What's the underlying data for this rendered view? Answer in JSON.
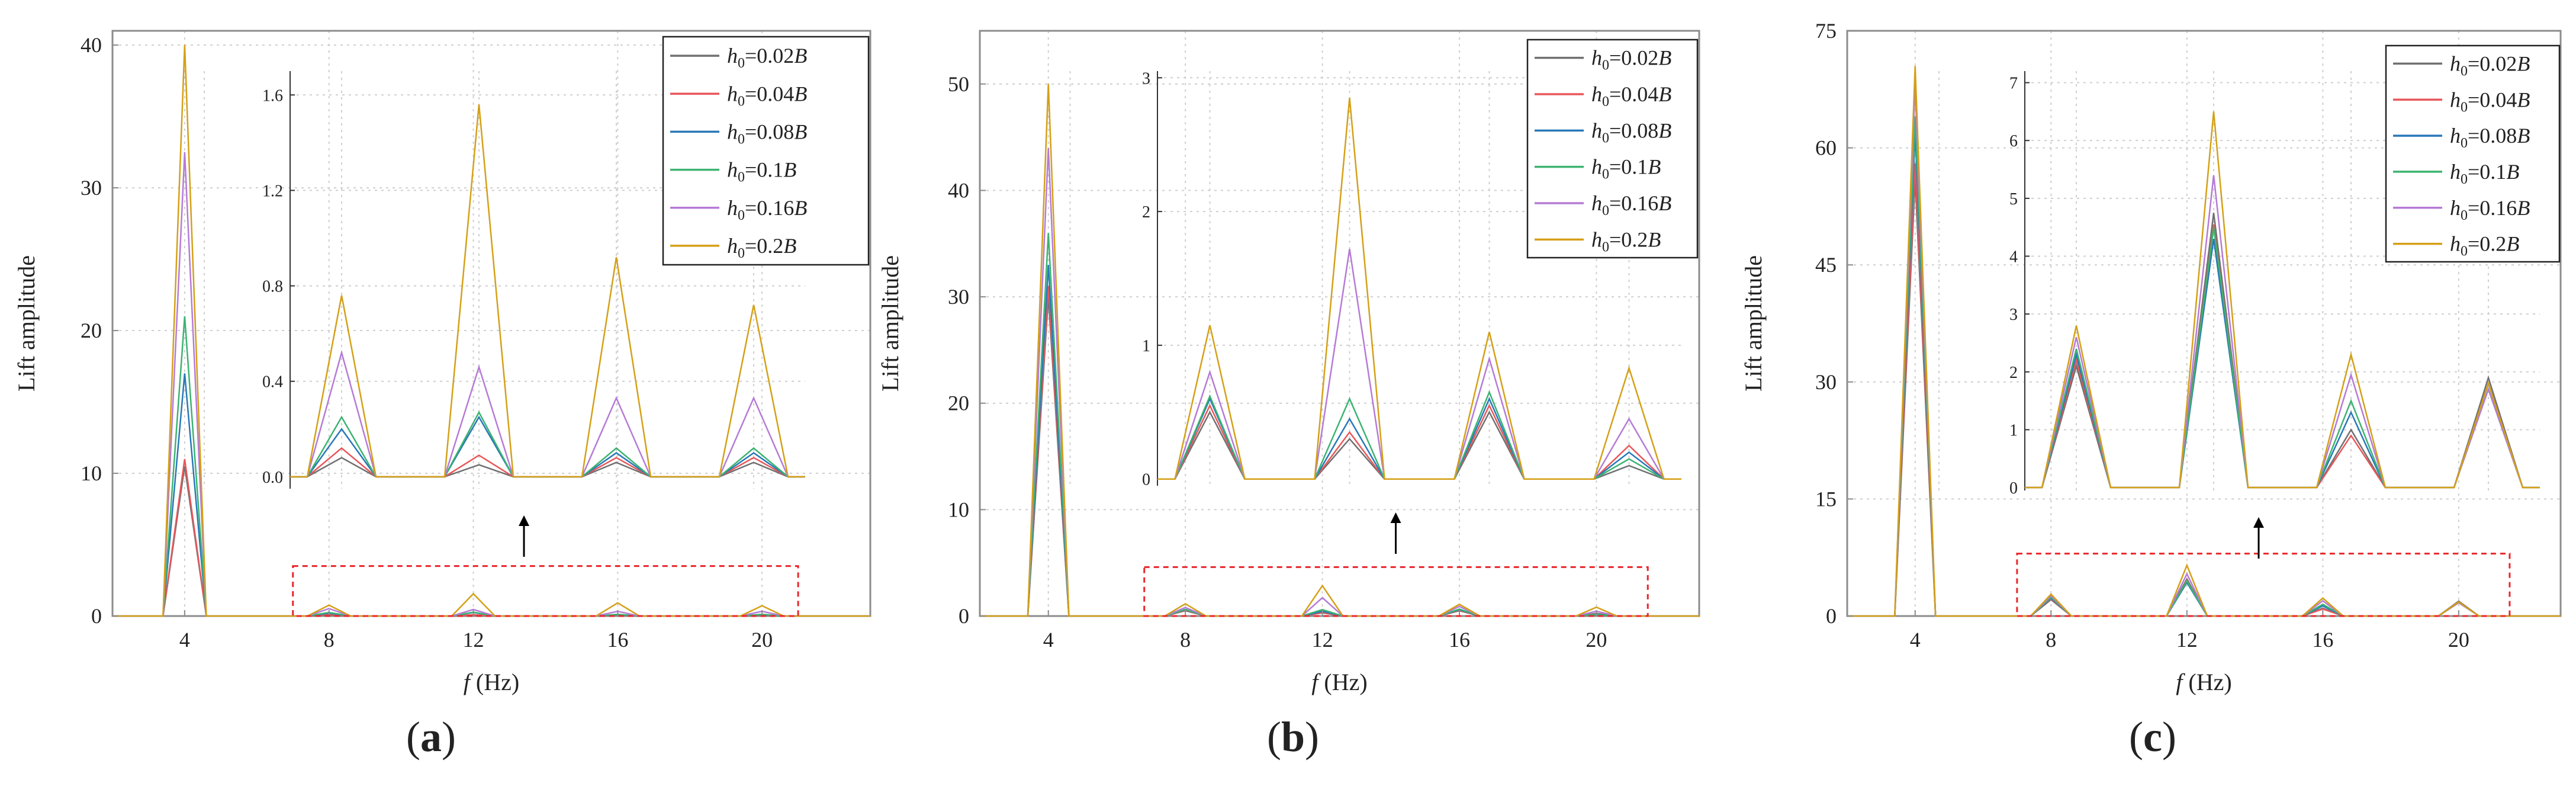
{
  "figure": {
    "panels": [
      {
        "label_open": "(",
        "label_letter": "a",
        "label_close": ")"
      },
      {
        "label_open": "(",
        "label_letter": "b",
        "label_close": ")"
      },
      {
        "label_open": "(",
        "label_letter": "c",
        "label_close": ")"
      }
    ]
  },
  "colors": {
    "series": [
      "#707070",
      "#e8575a",
      "#2878b8",
      "#3cb371",
      "#b57bd6",
      "#d4a017"
    ],
    "frame": "#8c8c8c",
    "grid": "#cfcfcf",
    "dashed_box": "#e8262b",
    "arrow": "#000000"
  },
  "chart_data": [
    {
      "type": "line",
      "ylabel": "Lift amplitude",
      "xlabel_symbol": "f",
      "xlabel_unit": "(Hz)",
      "xlim": [
        2,
        23
      ],
      "ylim": [
        0,
        41
      ],
      "xticks": [
        4,
        8,
        12,
        16,
        20
      ],
      "yticks": [
        0,
        10,
        20,
        30,
        40
      ],
      "x": [
        4,
        8,
        12,
        16,
        20
      ],
      "legend_position": "top-right",
      "series": [
        {
          "name_h": "h",
          "name_sub": "0",
          "name_value": "=0.02",
          "name_B": "B",
          "values": [
            10.5,
            0.08,
            0.05,
            0.06,
            0.06
          ]
        },
        {
          "name_h": "h",
          "name_sub": "0",
          "name_value": "=0.04",
          "name_B": "B",
          "values": [
            11.0,
            0.12,
            0.09,
            0.08,
            0.08
          ]
        },
        {
          "name_h": "h",
          "name_sub": "0",
          "name_value": "=0.08",
          "name_B": "B",
          "values": [
            17.0,
            0.2,
            0.25,
            0.1,
            0.1
          ]
        },
        {
          "name_h": "h",
          "name_sub": "0",
          "name_value": "=0.1",
          "name_B": "B",
          "values": [
            21.0,
            0.25,
            0.27,
            0.12,
            0.12
          ]
        },
        {
          "name_h": "h",
          "name_sub": "0",
          "name_value": "=0.16",
          "name_B": "B",
          "values": [
            32.5,
            0.52,
            0.46,
            0.33,
            0.33
          ]
        },
        {
          "name_h": "h",
          "name_sub": "0",
          "name_value": "=0.2",
          "name_B": "B",
          "values": [
            40.0,
            0.76,
            1.56,
            0.92,
            0.72
          ]
        }
      ],
      "inset": {
        "xlim": [
          6.5,
          21.5
        ],
        "ylim": [
          -0.05,
          1.7
        ],
        "yticks": [
          0.0,
          0.4,
          0.8,
          1.2,
          1.6
        ],
        "ytick_labels": [
          "0.0",
          "0.4",
          "0.8",
          "1.2",
          "1.6"
        ],
        "ygrid": [
          0.4,
          0.8,
          1.2,
          1.6
        ]
      },
      "zoom_box": {
        "x": [
          7,
          21
        ],
        "y": [
          0,
          3.5
        ]
      }
    },
    {
      "type": "line",
      "ylabel": "Lift amplitude",
      "xlabel_symbol": "f",
      "xlabel_unit": "(Hz)",
      "xlim": [
        2,
        23
      ],
      "ylim": [
        0,
        55
      ],
      "xticks": [
        4,
        8,
        12,
        16,
        20
      ],
      "yticks": [
        0,
        10,
        20,
        30,
        40,
        50
      ],
      "x": [
        4,
        8,
        12,
        16,
        20
      ],
      "legend_position": "top-right",
      "series": [
        {
          "name_h": "h",
          "name_sub": "0",
          "name_value": "=0.02",
          "name_B": "B",
          "values": [
            30.0,
            0.5,
            0.3,
            0.5,
            0.1
          ]
        },
        {
          "name_h": "h",
          "name_sub": "0",
          "name_value": "=0.04",
          "name_B": "B",
          "values": [
            31.0,
            0.55,
            0.35,
            0.55,
            0.25
          ]
        },
        {
          "name_h": "h",
          "name_sub": "0",
          "name_value": "=0.08",
          "name_B": "B",
          "values": [
            33.0,
            0.6,
            0.45,
            0.6,
            0.2
          ]
        },
        {
          "name_h": "h",
          "name_sub": "0",
          "name_value": "=0.1",
          "name_B": "B",
          "values": [
            36.0,
            0.62,
            0.6,
            0.65,
            0.15
          ]
        },
        {
          "name_h": "h",
          "name_sub": "0",
          "name_value": "=0.16",
          "name_B": "B",
          "values": [
            44.0,
            0.8,
            1.72,
            0.9,
            0.45
          ]
        },
        {
          "name_h": "h",
          "name_sub": "0",
          "name_value": "=0.2",
          "name_B": "B",
          "values": [
            50.0,
            1.15,
            2.85,
            1.1,
            0.83
          ]
        }
      ],
      "inset": {
        "xlim": [
          6.5,
          21.5
        ],
        "ylim": [
          -0.05,
          3.05
        ],
        "yticks": [
          0,
          1,
          2,
          3
        ],
        "ytick_labels": [
          "0",
          "1",
          "2",
          "3"
        ],
        "ygrid": [
          1,
          2,
          3
        ]
      },
      "zoom_box": {
        "x": [
          6.8,
          21.5
        ],
        "y": [
          0,
          4.6
        ]
      }
    },
    {
      "type": "line",
      "ylabel": "Lift amplitude",
      "xlabel_symbol": "f",
      "xlabel_unit": "(Hz)",
      "xlim": [
        2,
        23
      ],
      "ylim": [
        0,
        75
      ],
      "xticks": [
        4,
        8,
        12,
        16,
        20
      ],
      "yticks": [
        0,
        15,
        30,
        45,
        60,
        75
      ],
      "x": [
        4,
        8,
        12,
        16,
        20
      ],
      "legend_position": "top-right",
      "series": [
        {
          "name_h": "h",
          "name_sub": "0",
          "name_value": "=0.02",
          "name_B": "B",
          "values": [
            56.0,
            2.1,
            4.75,
            1.0,
            1.9
          ]
        },
        {
          "name_h": "h",
          "name_sub": "0",
          "name_value": "=0.04",
          "name_B": "B",
          "values": [
            58.0,
            2.2,
            4.55,
            0.9,
            1.8
          ]
        },
        {
          "name_h": "h",
          "name_sub": "0",
          "name_value": "=0.08",
          "name_B": "B",
          "values": [
            62.0,
            2.3,
            4.3,
            1.3,
            1.8
          ]
        },
        {
          "name_h": "h",
          "name_sub": "0",
          "name_value": "=0.1",
          "name_B": "B",
          "values": [
            64.0,
            2.4,
            4.5,
            1.5,
            1.7
          ]
        },
        {
          "name_h": "h",
          "name_sub": "0",
          "name_value": "=0.16",
          "name_B": "B",
          "values": [
            68.0,
            2.6,
            5.4,
            1.95,
            1.7
          ]
        },
        {
          "name_h": "h",
          "name_sub": "0",
          "name_value": "=0.2",
          "name_B": "B",
          "values": [
            70.5,
            2.8,
            6.5,
            2.3,
            1.8
          ]
        }
      ],
      "inset": {
        "xlim": [
          6.5,
          21.5
        ],
        "ylim": [
          -0.05,
          7.2
        ],
        "yticks": [
          0,
          1,
          2,
          3,
          4,
          5,
          6,
          7
        ],
        "ytick_labels": [
          "0",
          "1",
          "2",
          "3",
          "4",
          "5",
          "6",
          "7"
        ],
        "ygrid": [
          1,
          2,
          3,
          4,
          5,
          6,
          7
        ]
      },
      "zoom_box": {
        "x": [
          7,
          21.5
        ],
        "y": [
          0,
          8
        ]
      }
    }
  ]
}
